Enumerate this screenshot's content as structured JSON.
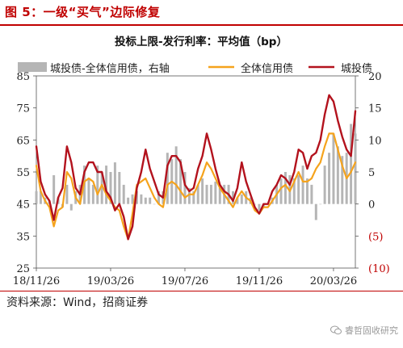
{
  "figure_label": "图 5：一级“买气”边际修复",
  "source_text": "资料来源：Wind，招商证券",
  "watermark_text": "睿哲固收研究",
  "colors": {
    "bar": "#b5b5b5",
    "line_all": "#f5a31c",
    "line_lgfv": "#b3121d",
    "accent": "#c00000",
    "axis_right": "#c00000"
  },
  "chart_data": {
    "type": "combo",
    "title": "投标上限-发行利率：平均值（bp）",
    "legend": {
      "placement": "top"
    },
    "x_tick_labels": [
      "18/11/26",
      "19/03/26",
      "19/07/26",
      "19/11/26",
      "20/03/26"
    ],
    "x_tick_positions": [
      0,
      17,
      34,
      51,
      68
    ],
    "x_range": [
      0,
      73
    ],
    "y_left": {
      "range": [
        25,
        85
      ],
      "ticks": [
        "25",
        "35",
        "45",
        "55",
        "65",
        "75",
        "85"
      ]
    },
    "y_right": {
      "range": [
        -10,
        20
      ],
      "ticks": [
        "(10)",
        "(5)",
        "0",
        "5",
        "10",
        "15",
        "20"
      ],
      "tick_values": [
        -10,
        -5,
        0,
        5,
        10,
        15,
        20
      ]
    },
    "series": [
      {
        "name": "城投债-全体信用债，右轴",
        "kind": "bar",
        "axis": "right",
        "values": [
          2,
          2,
          1,
          0.5,
          4.5,
          1,
          -0.5,
          3,
          -1,
          2,
          3,
          6,
          4,
          3,
          6,
          5,
          6,
          5,
          6.5,
          5,
          3,
          1,
          1.5,
          2,
          1.5,
          1,
          1,
          0,
          2,
          2,
          8,
          7,
          9,
          7,
          5,
          2.5,
          2,
          3,
          4,
          3,
          3,
          3.5,
          2.5,
          3,
          3,
          2,
          1,
          1.5,
          2,
          1,
          0,
          -1,
          -0.5,
          0,
          1,
          3,
          4,
          5,
          4.5,
          4,
          4.5,
          6,
          4,
          3,
          -2.5,
          0,
          6,
          8,
          11,
          9,
          7.5,
          8,
          12.5,
          11
        ]
      },
      {
        "name": "全体信用债",
        "kind": "line",
        "axis": "left",
        "values": [
          57,
          49,
          46,
          44,
          38,
          43,
          44,
          55,
          53,
          47,
          45,
          52,
          53,
          52,
          48,
          51,
          48,
          46,
          44,
          43,
          38,
          34,
          42,
          51,
          52,
          53,
          50,
          47,
          45,
          44,
          51,
          52,
          51,
          49,
          47,
          48,
          48,
          51,
          54,
          58,
          56,
          53,
          50,
          48,
          46,
          44,
          47,
          49,
          47,
          46,
          43,
          42,
          44,
          44,
          46,
          48,
          50,
          51,
          49,
          52,
          55,
          52,
          52,
          53,
          56,
          58,
          63,
          67,
          67,
          62,
          57,
          53,
          55,
          58
        ]
      },
      {
        "name": "城投债",
        "kind": "line",
        "axis": "left",
        "values": [
          63,
          52,
          48,
          46,
          40,
          47,
          50,
          63,
          58,
          50,
          48,
          55,
          58,
          58,
          55,
          55,
          49,
          47,
          43,
          45,
          41,
          34,
          38,
          50,
          55,
          62,
          56,
          52,
          48,
          47,
          57,
          60,
          60,
          58,
          51,
          49,
          50,
          56,
          60,
          67,
          62,
          56,
          51,
          49,
          48,
          46,
          50,
          58,
          52,
          48,
          44,
          42,
          45,
          45,
          49,
          51,
          54,
          53,
          51,
          55,
          62,
          61,
          56,
          60,
          61,
          65,
          73,
          79,
          77,
          71,
          66,
          62,
          60,
          74
        ]
      }
    ]
  }
}
